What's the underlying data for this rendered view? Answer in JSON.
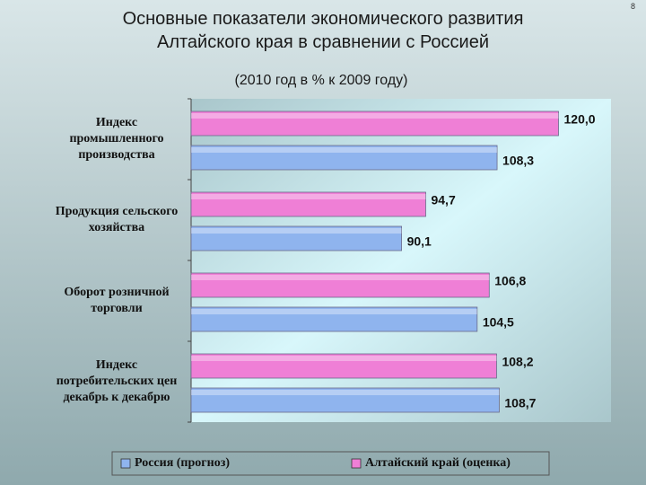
{
  "page_number": "8",
  "chart_data": {
    "type": "bar",
    "orientation": "horizontal",
    "title": "Основные показатели экономического развития\nАлтайского края в сравнении с Россией",
    "subtitle": "(2010 год в % к 2009 году)",
    "categories": [
      "Индекс\nпромышленного\nпроизводства",
      "Продукция сельского\nхозяйства",
      "Оборот розничной\nторговли",
      "Индекс\nпотребительских цен\nдекабрь к декабрю"
    ],
    "series": [
      {
        "name": "Россия (прогноз)",
        "color": "#8fb4ee",
        "values": [
          108.3,
          90.1,
          104.5,
          108.7
        ],
        "value_labels": [
          "108,3",
          "90,1",
          "104,5",
          "108,7"
        ]
      },
      {
        "name": "Алтайский край (оценка)",
        "color": "#ef7fd6",
        "values": [
          120.0,
          94.7,
          106.8,
          108.2
        ],
        "value_labels": [
          "120,0",
          "94,7",
          "106,8",
          "108,2"
        ]
      }
    ],
    "xlim": [
      50,
      130
    ],
    "legend": "bottom"
  }
}
